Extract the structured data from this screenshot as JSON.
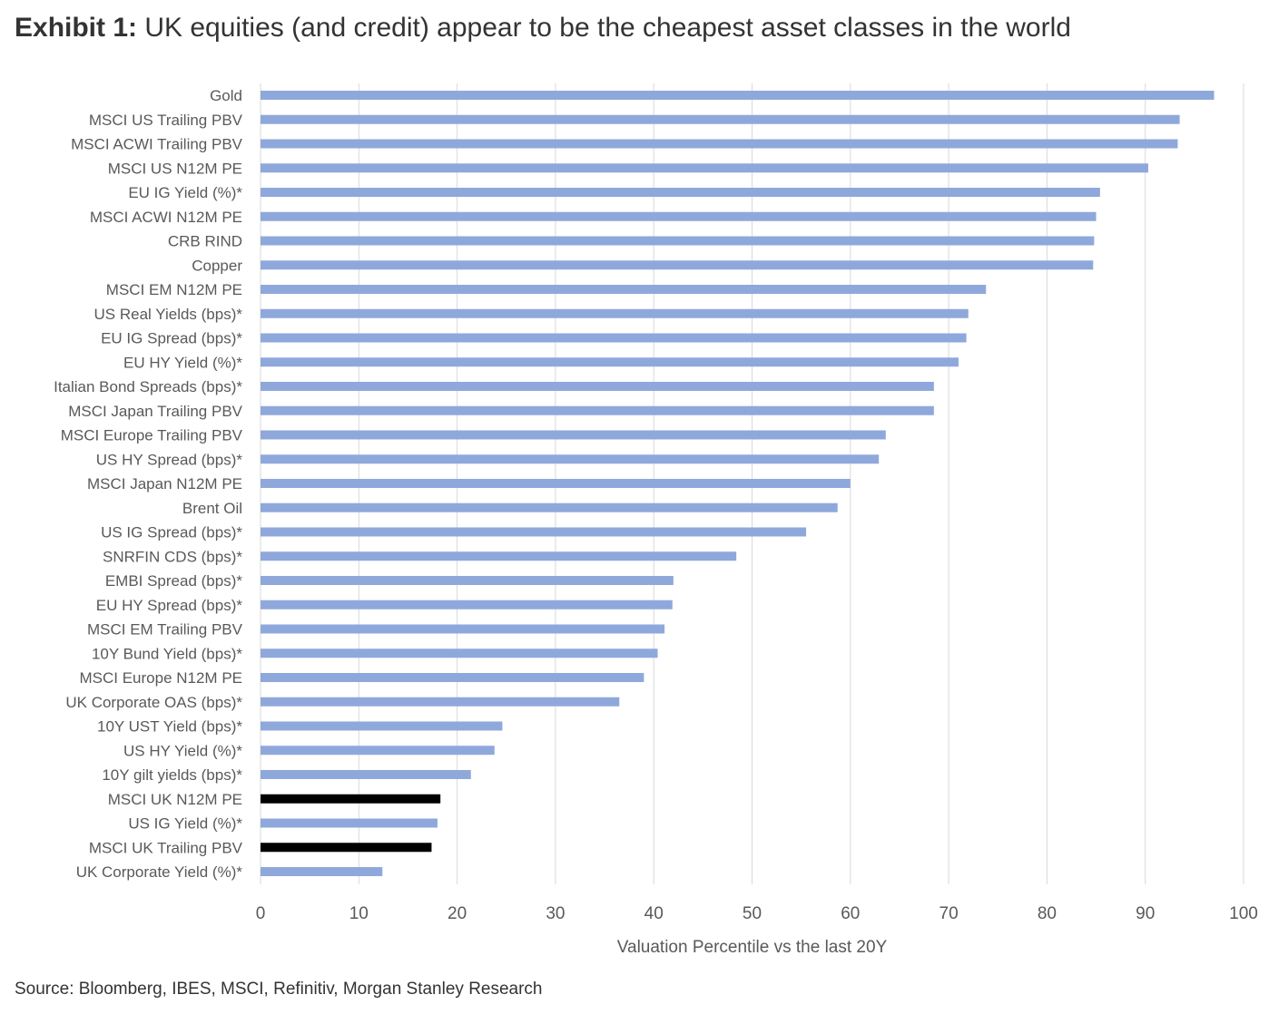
{
  "title_prefix": "Exhibit 1:",
  "title_text": "UK equities (and credit) appear to be the cheapest asset classes in the world",
  "source": "Source: Bloomberg, IBES, MSCI, Refinitiv, Morgan Stanley Research",
  "colors": {
    "default_bar": "#8FA8DC",
    "highlight_bar": "#000000",
    "grid": "#d9d9d9",
    "text": "#595959"
  },
  "chart_data": {
    "type": "bar",
    "orientation": "horizontal",
    "xlabel": "Valuation Percentile vs the last 20Y",
    "ylabel": "",
    "xlim": [
      0,
      100
    ],
    "xticks": [
      0,
      10,
      20,
      30,
      40,
      50,
      60,
      70,
      80,
      90,
      100
    ],
    "grid": true,
    "categories": [
      "Gold",
      "MSCI US Trailing PBV",
      "MSCI ACWI Trailing PBV",
      "MSCI US N12M PE",
      "EU IG Yield (%)*",
      "MSCI ACWI N12M PE",
      "CRB RIND",
      "Copper",
      "MSCI EM N12M PE",
      "US Real Yields (bps)*",
      "EU IG Spread (bps)*",
      "EU HY Yield (%)*",
      "Italian Bond Spreads (bps)*",
      "MSCI Japan Trailing PBV",
      "MSCI Europe Trailing PBV",
      "US HY Spread (bps)*",
      "MSCI Japan N12M PE",
      "Brent Oil",
      "US IG Spread (bps)*",
      "SNRFIN CDS (bps)*",
      "EMBI Spread (bps)*",
      "EU HY Spread (bps)*",
      "MSCI EM Trailing PBV",
      "10Y Bund Yield (bps)*",
      "MSCI Europe N12M PE",
      "UK Corporate OAS (bps)*",
      "10Y UST Yield (bps)*",
      "US HY Yield (%)*",
      "10Y gilt yields (bps)*",
      "MSCI UK N12M PE",
      "US IG Yield (%)*",
      "MSCI UK Trailing PBV",
      "UK Corporate Yield (%)*"
    ],
    "values": [
      97,
      93.5,
      93.3,
      90.3,
      85.4,
      85,
      84.8,
      84.7,
      73.8,
      72,
      71.8,
      71,
      68.5,
      68.5,
      63.6,
      62.9,
      60,
      58.7,
      55.5,
      48.4,
      42,
      41.9,
      41.1,
      40.4,
      39,
      36.5,
      24.6,
      23.8,
      21.4,
      18.3,
      18,
      17.4,
      12.4
    ],
    "highlighted": [
      "MSCI UK N12M PE",
      "MSCI UK Trailing PBV"
    ]
  }
}
